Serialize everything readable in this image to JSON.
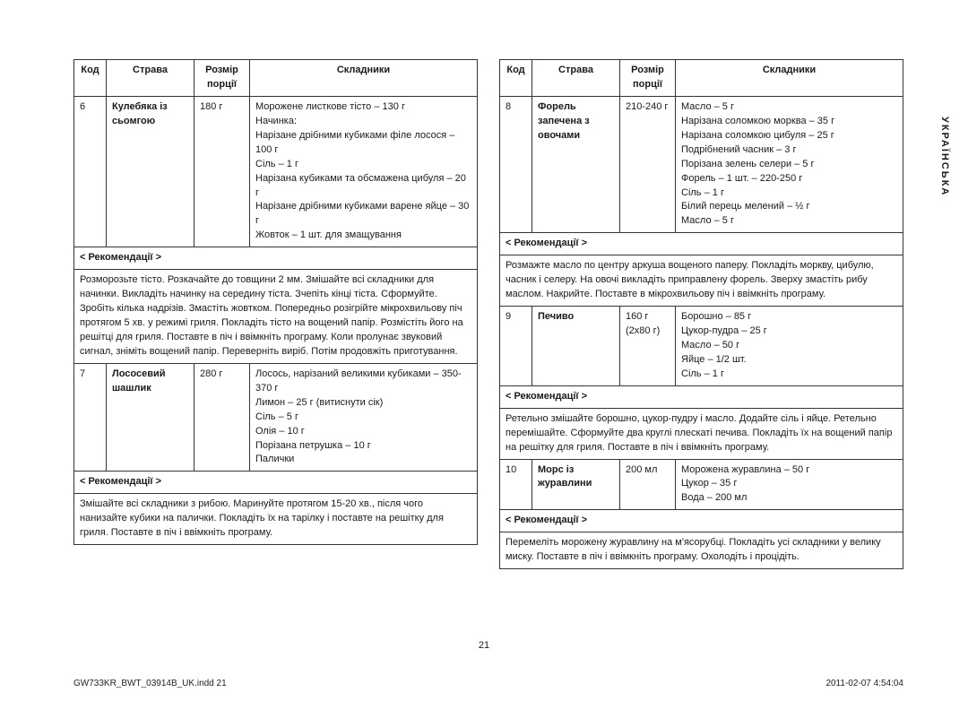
{
  "headers": {
    "code": "Код",
    "dish": "Страва",
    "portion": "Розмір порції",
    "ingredients": "Складники"
  },
  "rec_label": "< Рекомендації >",
  "left": [
    {
      "code": "6",
      "dish": "Кулебяка із сьомгою",
      "portion": "180 г",
      "ingredients": "Морожене листкове тісто – 130 г\nНачинка:\nНарізане дрібними кубиками філе лосося – 100 г\nСіль – 1 г\nНарізана кубиками та обсмажена цибуля – 20 г\nНарізане дрібними кубиками варене яйце – 30 г\nЖовток – 1 шт. для змащування",
      "rec": "Розморозьте тісто. Розкачайте до товщини 2 мм. Змішайте всі складники для начинки. Викладіть начинку на середину тіста. Зчепіть кінці тіста. Сформуйте. Зробіть кілька надрізів. Змастіть жовтком. Попередньо розігрійте мікрохвильову піч протягом 5 хв. у режимі гриля. Покладіть тісто на вощений папір. Розмістіть його на решітці для гриля. Поставте в піч і ввімкніть програму. Коли пролунає звуковий сигнал, зніміть вощений папір. Переверніть виріб. Потім продовжіть приготування."
    },
    {
      "code": "7",
      "dish": "Лососевий шашлик",
      "portion": "280 г",
      "ingredients": "Лосось, нарізаний великими кубиками – 350-370 г\nЛимон – 25 г (витиснути сік)\nСіль – 5 г\nОлія – 10 г\nПорізана петрушка – 10 г\nПалички",
      "rec": "Змішайте всі складники з рибою. Маринуйте протягом 15-20 хв., після чого нанизайте кубики на палички. Покладіть їх на тарілку і поставте на решітку для гриля. Поставте в піч і ввімкніть програму."
    }
  ],
  "right": [
    {
      "code": "8",
      "dish": "Форель запечена з овочами",
      "portion": "210-240 г",
      "ingredients": "Масло – 5 г\nНарізана соломкою морква – 35 г\nНарізана соломкою цибуля – 25 г\nПодрібнений часник – 3 г\nПорізана зелень селери – 5 г\nФорель – 1 шт. – 220-250 г\nСіль – 1 г\nБілий перець мелений – ½ г\nМасло – 5 г",
      "rec": "Розмажте масло по центру аркуша вощеного паперу. Покладіть моркву, цибулю, часник і селеру. На овочі викладіть приправлену форель. Зверху змастіть рибу маслом. Накрийте. Поставте в мікрохвильову піч і ввімкніть програму."
    },
    {
      "code": "9",
      "dish": "Печиво",
      "portion": "160 г\n(2х80 г)",
      "ingredients": "Борошно – 85 г\nЦукор-пудра – 25 г\nМасло – 50 г\nЯйце – 1/2 шт.\nСіль – 1 г",
      "rec": "Ретельно змішайте борошно, цукор-пудру і масло. Додайте сіль і яйце. Ретельно перемішайте. Сформуйте два круглі плескаті печива. Покладіть їх на вощений папір на решітку для гриля. Поставте в піч і ввімкніть програму."
    },
    {
      "code": "10",
      "dish": "Морс із журавлини",
      "portion": "200 мл",
      "ingredients": "Морожена журавлина – 50 г\nЦукор – 35 г\nВода – 200 мл",
      "rec": "Перемеліть морожену журавлину на м'ясорубці. Покладіть усі складники у велику миску. Поставте в піч і ввімкніть програму. Охолодіть і процідіть."
    }
  ],
  "page_num": "21",
  "footer_left": "GW733KR_BWT_03914B_UK.indd   21",
  "footer_right": "2011-02-07   4:54:04",
  "side_lang": "УКРАЇНСЬКА"
}
